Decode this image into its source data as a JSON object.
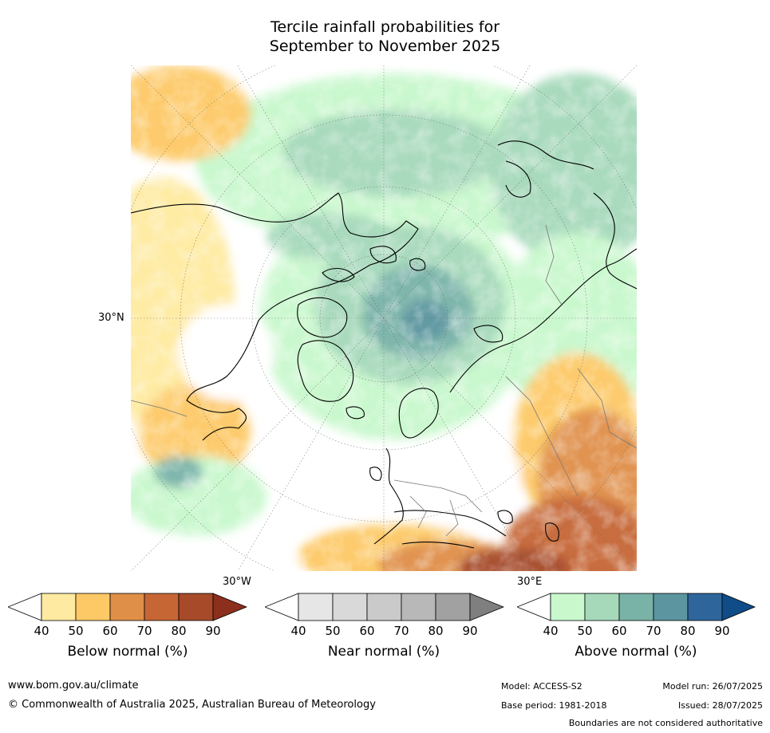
{
  "title": {
    "line1": "Tercile rainfall probabilities for",
    "line2": "September to November 2025"
  },
  "map_labels": {
    "lat_30n": "30°N",
    "lon_30w": "30°W",
    "lon_30e": "30°E"
  },
  "colorbars": [
    {
      "name": "below",
      "title": "Below normal (%)",
      "ticks": [
        "40",
        "50",
        "60",
        "70",
        "80",
        "90"
      ],
      "colors": [
        "#ffffff",
        "#feeaa0",
        "#fdc966",
        "#e08f48",
        "#c66634",
        "#a64a2a",
        "#8c2f1d"
      ]
    },
    {
      "name": "near",
      "title": "Near normal (%)",
      "ticks": [
        "40",
        "50",
        "60",
        "70",
        "80",
        "90"
      ],
      "colors": [
        "#ffffff",
        "#e6e6e6",
        "#d9d9d9",
        "#cacaca",
        "#b8b8b8",
        "#a1a1a1",
        "#7f7f7f"
      ]
    },
    {
      "name": "above",
      "title": "Above normal (%)",
      "ticks": [
        "40",
        "50",
        "60",
        "70",
        "80",
        "90"
      ],
      "colors": [
        "#ffffff",
        "#c8f8cc",
        "#a5d9ba",
        "#79b3a8",
        "#5c95a0",
        "#2e669c",
        "#104c88"
      ]
    }
  ],
  "footer": {
    "url": "www.bom.gov.au/climate",
    "copyright": "© Commonwealth of Australia 2025, Australian Bureau of Meteorology",
    "model": "Model: ACCESS-S2",
    "base_period": "Base period: 1981-2018",
    "model_run": "Model run: 26/07/2025",
    "issued": "Issued: 28/07/2025",
    "disclaimer": "Boundaries are not considered authoritative"
  }
}
